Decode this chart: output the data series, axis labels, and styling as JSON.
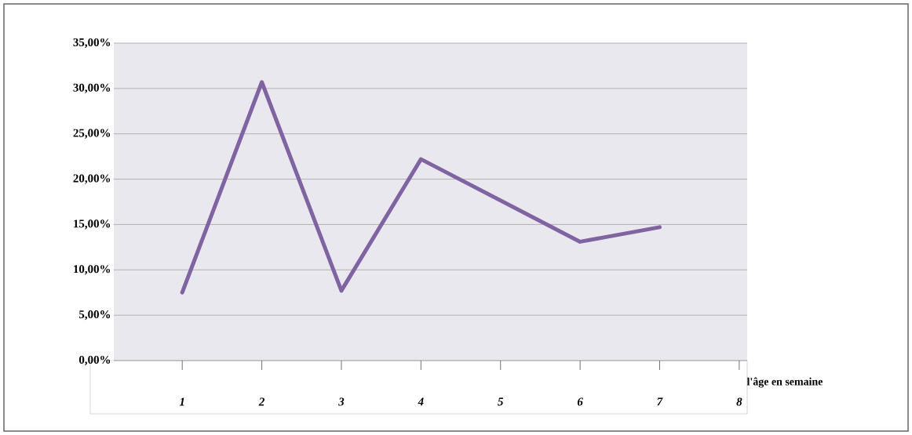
{
  "chart_data": {
    "type": "line",
    "xlabel": "l'âge en semaine",
    "x": [
      1,
      2,
      3,
      4,
      6,
      7
    ],
    "series": [
      {
        "color": "#8064a2",
        "values": [
          7.5,
          30.7,
          7.7,
          22.2,
          13.1,
          14.7
        ]
      }
    ],
    "xlim": [
      0.14,
      8.1
    ],
    "xticks": [
      1,
      2,
      3,
      4,
      5,
      6,
      7,
      8
    ],
    "ylim": [
      0,
      35
    ],
    "yticks": [
      {
        "value": 0,
        "label": "0,00%"
      },
      {
        "value": 5,
        "label": "5,00%"
      },
      {
        "value": 10,
        "label": "10,00%"
      },
      {
        "value": 15,
        "label": "15,00%"
      },
      {
        "value": 20,
        "label": "20,00%"
      },
      {
        "value": 25,
        "label": "25,00%"
      },
      {
        "value": 30,
        "label": "30,00%"
      },
      {
        "value": 35,
        "label": "35,00%"
      }
    ],
    "grid": "y",
    "marker": "none",
    "line_style": "solid"
  }
}
